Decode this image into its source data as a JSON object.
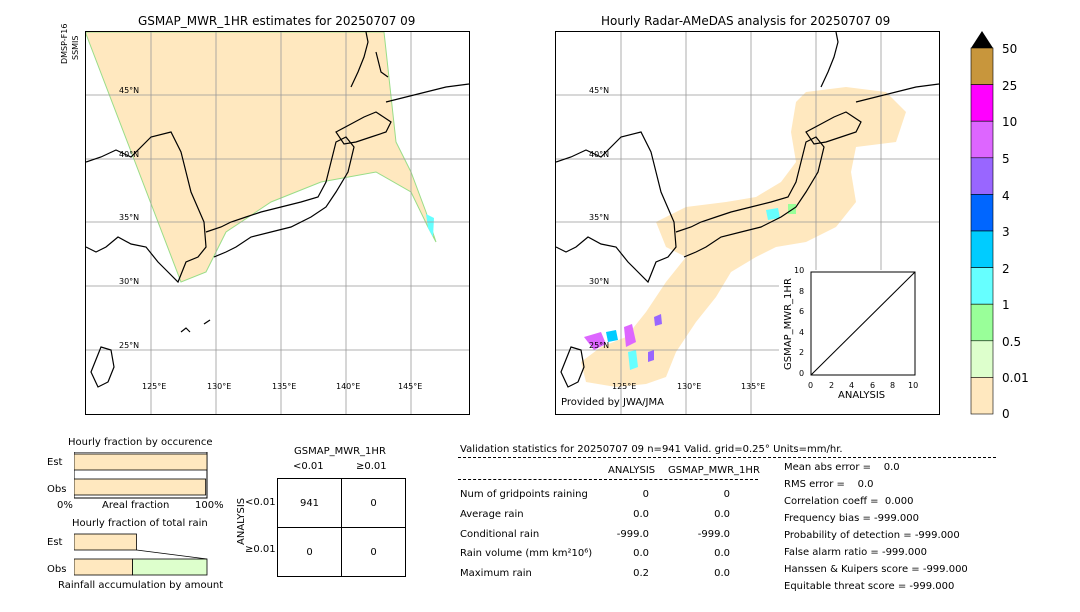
{
  "left_map": {
    "title": "GSMAP_MWR_1HR estimates for 20250707 09",
    "satellite_label_1": "DMSP-F16",
    "satellite_label_2": "SSMIS",
    "lat_labels": [
      "45°N",
      "40°N",
      "35°N",
      "30°N",
      "25°N"
    ],
    "lon_labels": [
      "125°E",
      "130°E",
      "135°E",
      "140°E",
      "145°E"
    ]
  },
  "right_map": {
    "title": "Hourly Radar-AMeDAS analysis for 20250707 09",
    "provider": "Provided by JWA/JMA",
    "lat_labels": [
      "45°N",
      "40°N",
      "35°N",
      "30°N",
      "25°N"
    ],
    "lon_labels": [
      "125°E",
      "130°E",
      "135°E"
    ]
  },
  "colorbar": {
    "labels": [
      "50",
      "25",
      "10",
      "5",
      "4",
      "3",
      "2",
      "1",
      "0.5",
      "0.01",
      "0"
    ],
    "colors": [
      "#c8963c",
      "#ff00ff",
      "#dd66ff",
      "#9966ff",
      "#0066ff",
      "#00ccff",
      "#66ffff",
      "#99ff99",
      "#ddffcc",
      "#ffe8bf"
    ]
  },
  "chart_data": [
    {
      "type": "scatter",
      "title": "",
      "xlabel": "ANALYSIS",
      "ylabel": "GSMAP_MWR_1HR",
      "xlim": [
        0,
        10
      ],
      "ylim": [
        0,
        10
      ],
      "ticks": [
        "0",
        "2",
        "4",
        "6",
        "8",
        "10"
      ],
      "reference_line": [
        [
          0,
          0
        ],
        [
          10,
          10
        ]
      ]
    },
    {
      "type": "bar",
      "title": "Hourly fraction by occurence",
      "categories": [
        "Est",
        "Obs"
      ],
      "values": [
        1.0,
        0.99
      ],
      "xlabel": "Areal fraction",
      "x_tick_labels": [
        "0%",
        "100%"
      ]
    },
    {
      "type": "bar",
      "title": "Hourly fraction of total rain",
      "categories": [
        "Est",
        "Obs"
      ],
      "values": [
        0.47,
        0.44
      ],
      "xlabel": "Rainfall accumulation by amount"
    }
  ],
  "contingency": {
    "title": "GSMAP_MWR_1HR",
    "col_headers": [
      "<0.01",
      "≥0.01"
    ],
    "row_headers": [
      "<0.01",
      "≥0.01"
    ],
    "axis_label": "ANALYSIS",
    "cells": [
      [
        "941",
        "0"
      ],
      [
        "0",
        "0"
      ]
    ]
  },
  "validation": {
    "header": "Validation statistics for 20250707 09  n=941 Valid. grid=0.25° Units=mm/hr.",
    "col_analysis": "ANALYSIS",
    "col_gsmap": "GSMAP_MWR_1HR",
    "rows": [
      {
        "label": "Num of gridpoints raining",
        "analysis": "0",
        "gsmap": "0"
      },
      {
        "label": "Average rain",
        "analysis": "0.0",
        "gsmap": "0.0"
      },
      {
        "label": "Conditional rain",
        "analysis": "-999.0",
        "gsmap": "-999.0"
      },
      {
        "label": "Rain volume (mm km²10⁶)",
        "analysis": "0.0",
        "gsmap": "0.0"
      },
      {
        "label": "Maximum rain",
        "analysis": "0.2",
        "gsmap": "0.0"
      }
    ],
    "scores": [
      "Mean abs error =    0.0",
      "RMS error =    0.0",
      "Correlation coeff =  0.000",
      "Frequency bias = -999.000",
      "Probability of detection = -999.000",
      "False alarm ratio = -999.000",
      "Hanssen & Kuipers score = -999.000",
      "Equitable threat score = -999.000"
    ]
  }
}
